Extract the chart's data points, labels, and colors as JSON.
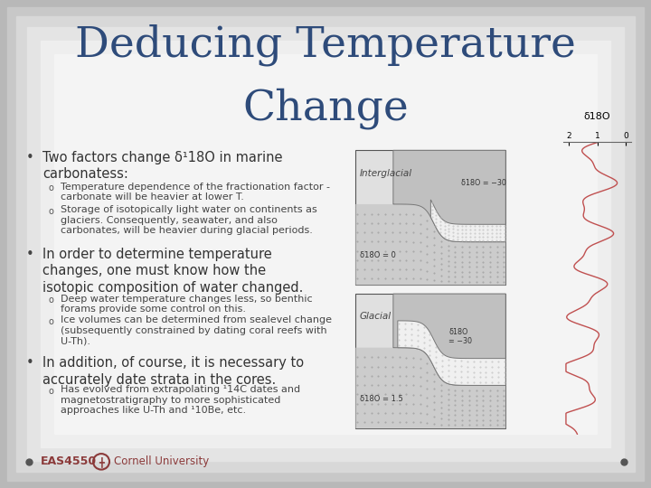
{
  "title_line1": "Deducing Temperature",
  "title_line2": "Change",
  "title_color": "#2E4B7A",
  "title_fontsize": 34,
  "bg_gradient": [
    "#C8C8C8",
    "#D8D8D8",
    "#EBEBEB",
    "#F5F5F5"
  ],
  "bullet_fontsize": 10.5,
  "sub_fontsize": 8,
  "footer_color": "#8B3A3A",
  "bullet1_main": "Two factors change δ¹18O in marine\ncarbonatess:",
  "bullet1_sub1": "Temperature dependence of the fractionation factor -\ncarbonate will be heavier at lower T.",
  "bullet1_sub2": "Storage of isotopically light water on continents as\nglaciers. Consequently, seawater, and also\ncarbonates, will be heavier during glacial periods.",
  "bullet2_main": "In order to determine temperature\nchanges, one must know how the\nisotopic composition of water changed.",
  "bullet2_sub1": "Deep water temperature changes less, so benthic\nforams provide some control on this.",
  "bullet2_sub2": "Ice volumes can be determined from sealevel change\n(subsequently constrained by dating coral reefs with\nU-Th).",
  "bullet3_main": "In addition, of course, it is necessary to\naccurately date strata in the cores.",
  "bullet3_sub1": "Has evolved from extrapolating ¹14C dates and\nmagnetostratigraphy to more sophisticated\napproaches like U-Th and ¹10Be, etc.",
  "interglacial_label": "Interglacial",
  "interglacial_ocean": "δ18O = 0",
  "interglacial_glacier": "δ18O = −30",
  "glacial_label": "Glacial",
  "glacial_ocean": "δ18O = 1.5",
  "glacial_glacier": "δ18O\n= −30",
  "curve_label": "δ18O",
  "eas_text": "EAS4550",
  "cornell_text": "Cornell University"
}
